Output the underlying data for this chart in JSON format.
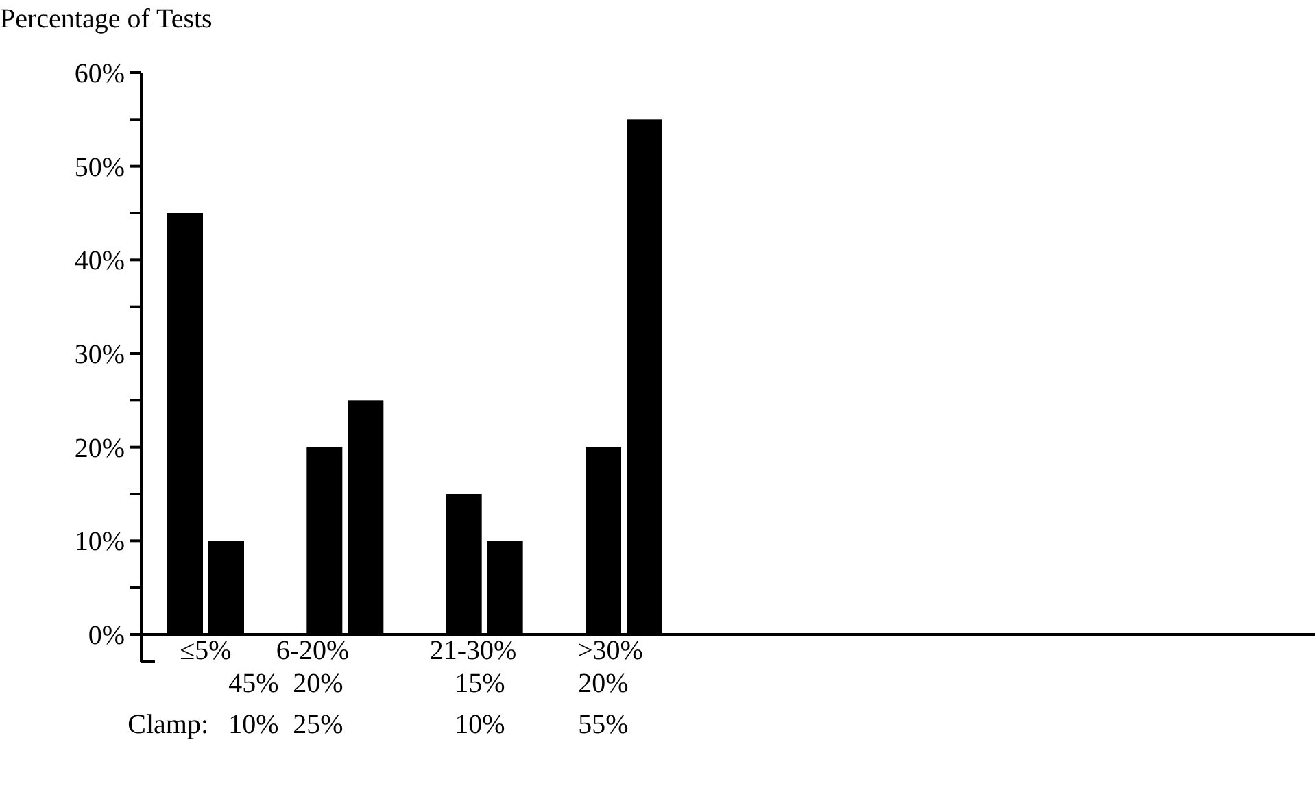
{
  "chart_data": {
    "type": "bar",
    "ylabel": "Percentage of Tests",
    "categories": [
      "≤5%",
      "6-20%",
      "21-30%",
      ">30%"
    ],
    "series": [
      {
        "color": "#000000",
        "values": [
          45,
          20,
          15,
          20
        ],
        "value_labels": [
          "45%",
          "20%",
          "15%",
          "20%"
        ]
      },
      {
        "name": "Clamp:",
        "color": "#000000",
        "values": [
          10,
          25,
          10,
          55
        ],
        "value_labels": [
          "10%",
          "25%",
          "10%",
          "55%"
        ]
      }
    ],
    "ylim": [
      0,
      60
    ],
    "yticks": [
      {
        "value": 0,
        "label": "0%"
      },
      {
        "value": 5,
        "label": null
      },
      {
        "value": 10,
        "label": "10%"
      },
      {
        "value": 15,
        "label": null
      },
      {
        "value": 20,
        "label": "20%"
      },
      {
        "value": 25,
        "label": null
      },
      {
        "value": 30,
        "label": "30%"
      },
      {
        "value": 35,
        "label": null
      },
      {
        "value": 40,
        "label": "40%"
      },
      {
        "value": 45,
        "label": null
      },
      {
        "value": 50,
        "label": "50%"
      },
      {
        "value": 55,
        "label": null
      },
      {
        "value": 60,
        "label": "60%"
      }
    ],
    "grid": false,
    "data_labels": true
  }
}
